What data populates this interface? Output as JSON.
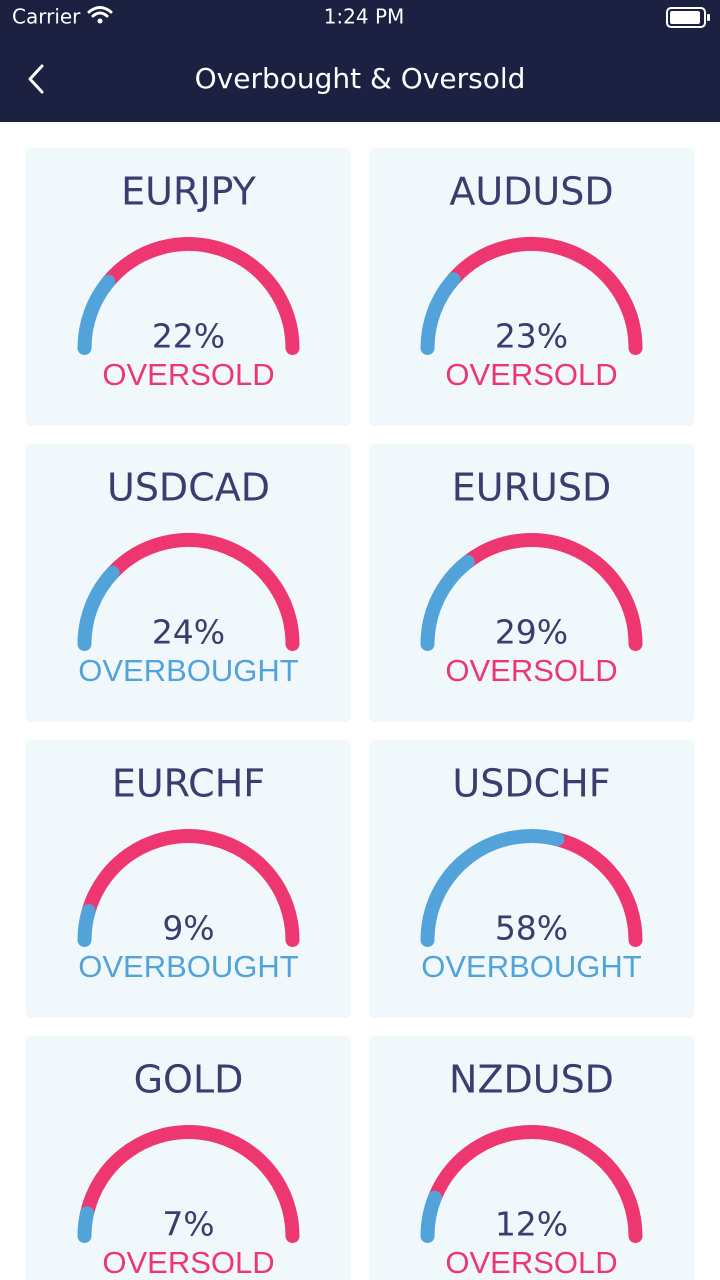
{
  "status_bar": {
    "carrier": "Carrier",
    "time": "1:24 PM"
  },
  "header": {
    "title": "Overbought & Oversold"
  },
  "gauge_colors": {
    "filled": "#52a3d9",
    "rest": "#ee3670"
  },
  "cards": [
    {
      "symbol": "EURJPY",
      "value": 22,
      "value_label": "22%",
      "status": "OVERSOLD",
      "status_color": "#ee3670"
    },
    {
      "symbol": "AUDUSD",
      "value": 23,
      "value_label": "23%",
      "status": "OVERSOLD",
      "status_color": "#ee3670"
    },
    {
      "symbol": "USDCAD",
      "value": 24,
      "value_label": "24%",
      "status": "OVERBOUGHT",
      "status_color": "#52a3d9"
    },
    {
      "symbol": "EURUSD",
      "value": 29,
      "value_label": "29%",
      "status": "OVERSOLD",
      "status_color": "#ee3670"
    },
    {
      "symbol": "EURCHF",
      "value": 9,
      "value_label": "9%",
      "status": "OVERBOUGHT",
      "status_color": "#52a3d9"
    },
    {
      "symbol": "USDCHF",
      "value": 58,
      "value_label": "58%",
      "status": "OVERBOUGHT",
      "status_color": "#52a3d9"
    },
    {
      "symbol": "GOLD",
      "value": 7,
      "value_label": "7%",
      "status": "OVERSOLD",
      "status_color": "#ee3670"
    },
    {
      "symbol": "NZDUSD",
      "value": 12,
      "value_label": "12%",
      "status": "OVERSOLD",
      "status_color": "#ee3670"
    }
  ]
}
